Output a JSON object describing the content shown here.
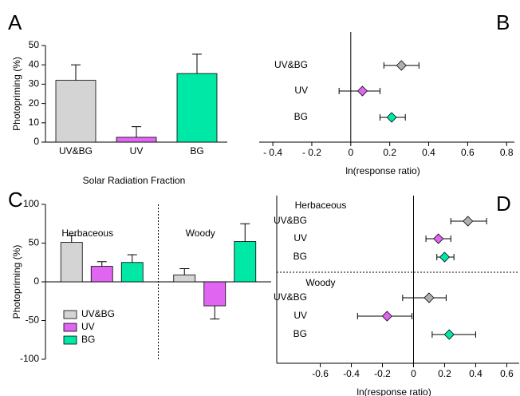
{
  "chart_data": [
    {
      "type": "bar",
      "panel_label": "A",
      "ylabel": "Photopriming (%)",
      "xlabel": "Solar Radiation Fraction",
      "categories": [
        "UV&BG",
        "UV",
        "BG"
      ],
      "values": [
        32,
        2.5,
        35.5
      ],
      "errors": [
        8,
        5.5,
        10
      ],
      "colors": [
        "#d4d4d4",
        "#e065f0",
        "#00e8a6"
      ],
      "ylim": [
        0,
        50
      ],
      "yticks": [
        0,
        10,
        20,
        30,
        40,
        50
      ]
    },
    {
      "type": "forest",
      "panel_label": "B",
      "xlabel": "ln(response ratio)",
      "categories": [
        "UV&BG",
        "UV",
        "BG"
      ],
      "values": [
        0.26,
        0.06,
        0.21
      ],
      "ci_low": [
        0.17,
        -0.06,
        0.15
      ],
      "ci_high": [
        0.35,
        0.15,
        0.28
      ],
      "colors": [
        "#b0b0b0",
        "#e065f0",
        "#00e8a6"
      ],
      "xlim": [
        -0.47,
        0.84
      ],
      "xticks": [
        {
          "value": -0.4,
          "label": "- 0.4"
        },
        {
          "value": -0.2,
          "label": "- 0.2"
        },
        0,
        0.2,
        0.4,
        0.6,
        0.8
      ]
    },
    {
      "type": "grouped_bar",
      "panel_label": "C",
      "ylabel": "Photopriming (%)",
      "categories": [
        "Herbaceous",
        "Woody"
      ],
      "series": [
        {
          "name": "UV&BG",
          "color": "#d4d4d4",
          "values": [
            51,
            9
          ],
          "errors": [
            9,
            8
          ]
        },
        {
          "name": "UV",
          "color": "#e065f0",
          "values": [
            20,
            -31
          ],
          "errors": [
            6,
            17
          ]
        },
        {
          "name": "BG",
          "color": "#00e8a6",
          "values": [
            25,
            52
          ],
          "errors": [
            10,
            23
          ]
        }
      ],
      "ylim": [
        -100,
        100
      ],
      "yticks": [
        -100,
        -50,
        0,
        50,
        100
      ]
    },
    {
      "type": "forest",
      "panel_label": "D",
      "xlabel": "ln(response ratio)",
      "colors": [
        "#b0b0b0",
        "#e065f0",
        "#00e8a6"
      ],
      "groups": [
        {
          "name": "Herbaceous",
          "categories": [
            "UV&BG",
            "UV",
            "BG"
          ],
          "values": [
            0.35,
            0.16,
            0.2
          ],
          "ci_low": [
            0.24,
            0.08,
            0.15
          ],
          "ci_high": [
            0.47,
            0.24,
            0.26
          ]
        },
        {
          "name": "Woody",
          "categories": [
            "UV&BG",
            "UV",
            "BG"
          ],
          "values": [
            0.1,
            -0.17,
            0.23
          ],
          "ci_low": [
            -0.07,
            -0.36,
            0.12
          ],
          "ci_high": [
            0.21,
            -0.01,
            0.4
          ]
        }
      ],
      "xlim": [
        -0.88,
        0.68
      ],
      "xticks": [
        -0.6,
        -0.4,
        -0.2,
        0,
        0.2,
        0.4,
        0.6
      ]
    }
  ]
}
